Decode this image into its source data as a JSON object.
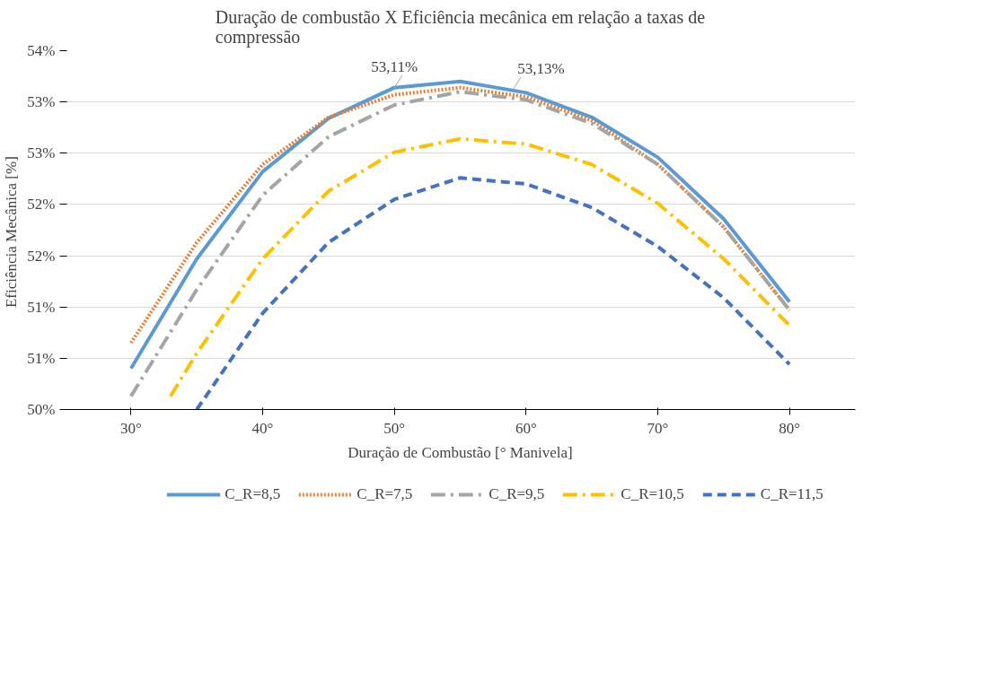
{
  "chart_data": {
    "type": "line",
    "title": "Duração de combustão X Eficiência mecânica em relação a taxas de compressão",
    "xlabel": "Duração de Combustão [° Manivela]",
    "ylabel": "Eficiência Mecânica  [%]",
    "x": [
      30,
      35,
      40,
      45,
      50,
      55,
      60,
      65,
      70,
      75,
      80
    ],
    "series": [
      {
        "name": "C_R=8,5",
        "color": "#5b9bd5",
        "line_style": "solid",
        "values": [
          50.4,
          51.47,
          52.32,
          52.84,
          53.14,
          53.2,
          53.09,
          52.85,
          52.46,
          51.86,
          51.05
        ]
      },
      {
        "name": "C_R=7,5",
        "color": "#ed7d31",
        "line_style": "dotted",
        "values": [
          50.65,
          51.63,
          52.39,
          52.85,
          53.07,
          53.14,
          53.05,
          52.82,
          52.39,
          51.78,
          50.97
        ]
      },
      {
        "name": "C_R=9,5",
        "color": "#a5a5a5",
        "line_style": "dashdot",
        "values": [
          50.13,
          51.17,
          52.09,
          52.66,
          52.97,
          53.1,
          53.02,
          52.79,
          52.39,
          51.78,
          50.97
        ]
      },
      {
        "name": "C_R=10,5",
        "color": "#ffc000",
        "line_style": "dashdot",
        "x": [
          33,
          35,
          40,
          45,
          50,
          55,
          60,
          65,
          70,
          75,
          80
        ],
        "values": [
          50.13,
          50.55,
          51.47,
          52.13,
          52.51,
          52.64,
          52.59,
          52.39,
          52.01,
          51.47,
          50.82
        ]
      },
      {
        "name": "C_R=11,5",
        "color": "#4472c4",
        "line_style": "dashed",
        "x": [
          35,
          40,
          45,
          50,
          55,
          60,
          65,
          70,
          75,
          80
        ],
        "values": [
          50.0,
          50.94,
          51.63,
          52.05,
          52.26,
          52.2,
          51.97,
          51.59,
          51.09,
          50.44
        ]
      }
    ],
    "annotations": [
      {
        "text": "53,11%",
        "x": 50,
        "y": 53.14
      },
      {
        "text": "53,13%",
        "x": 59,
        "y": 53.12
      }
    ],
    "xlim": [
      25,
      85
    ],
    "xticks": [
      {
        "value": 30,
        "label": "30°"
      },
      {
        "value": 40,
        "label": "40°"
      },
      {
        "value": 50,
        "label": "50°"
      },
      {
        "value": 60,
        "label": "60°"
      },
      {
        "value": 70,
        "label": "70°"
      },
      {
        "value": 80,
        "label": "80°"
      }
    ],
    "ylim": [
      50,
      53.5
    ],
    "yticks": [
      {
        "value": 50,
        "label": "50%"
      },
      {
        "value": 50.5,
        "label": "51%"
      },
      {
        "value": 51,
        "label": "51%"
      },
      {
        "value": 51.5,
        "label": "52%"
      },
      {
        "value": 52,
        "label": "52%"
      },
      {
        "value": 52.5,
        "label": "53%"
      },
      {
        "value": 53,
        "label": "53%"
      },
      {
        "value": 53.5,
        "label": "54%"
      }
    ],
    "grid": "y",
    "legend": "bottom"
  }
}
